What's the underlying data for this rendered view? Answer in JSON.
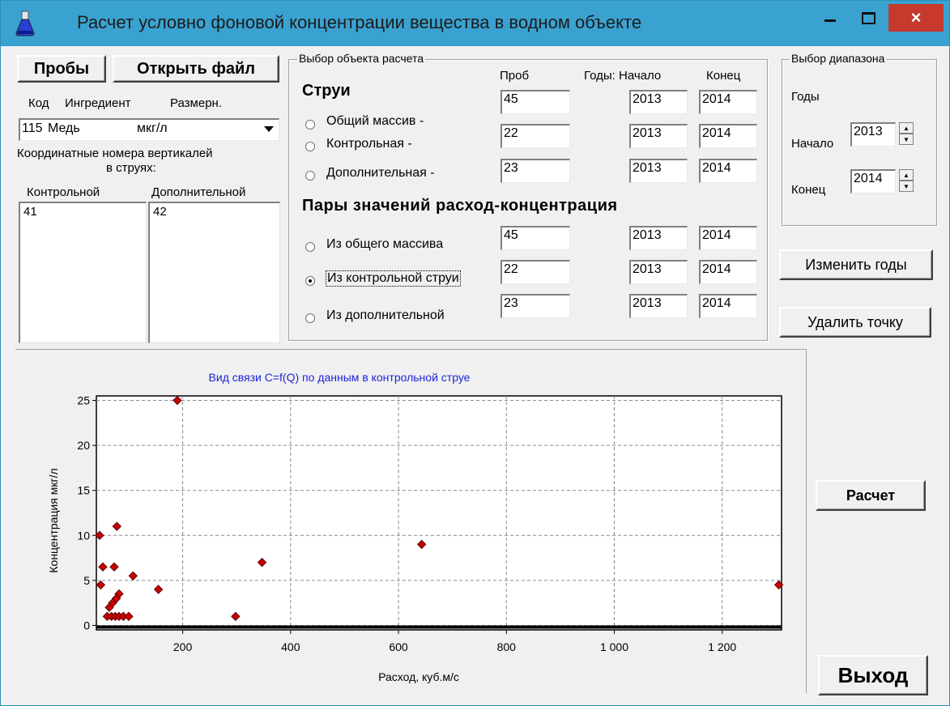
{
  "window": {
    "title": "Расчет условно фоновой концентрации вещества в водном объекте",
    "controls": {
      "minimize": "-",
      "maximize": "□",
      "close": "×"
    }
  },
  "toolbar": {
    "samples_button": "Пробы",
    "open_file_button": "Открыть файл"
  },
  "ingredient": {
    "headers": [
      "Код",
      "Ингредиент",
      "Размерн."
    ],
    "selected": {
      "code": "115",
      "name": "Медь",
      "unit": "мкг/л"
    }
  },
  "verticals": {
    "title_line1": "Координатные номера вертикалей",
    "title_line2": "в струях:",
    "control_header": "Контрольной",
    "additional_header": "Дополнительной",
    "control_items": [
      "41"
    ],
    "additional_items": [
      "42"
    ]
  },
  "object_group": {
    "title": "Выбор объекта расчета",
    "col_samples": "Проб",
    "col_years_start": "Годы: Начало",
    "col_end": "Конец",
    "streams_heading": "Струи",
    "pairs_heading": "Пары значений расход-концентрация",
    "streams": [
      {
        "label": "Общий массив -",
        "samples": "45",
        "start": "2013",
        "end": "2014",
        "selected": false
      },
      {
        "label": "Контрольная -",
        "samples": "22",
        "start": "2013",
        "end": "2014",
        "selected": false
      },
      {
        "label": "Дополнительная -",
        "samples": "23",
        "start": "2013",
        "end": "2014",
        "selected": false
      }
    ],
    "pairs": [
      {
        "label": "Из общего массива",
        "samples": "45",
        "start": "2013",
        "end": "2014",
        "selected": false
      },
      {
        "label": "Из контрольной струи",
        "samples": "22",
        "start": "2013",
        "end": "2014",
        "selected": true
      },
      {
        "label": "Из дополнительной",
        "samples": "23",
        "start": "2013",
        "end": "2014",
        "selected": false
      }
    ]
  },
  "range_group": {
    "title": "Выбор диапазона",
    "years_label": "Годы",
    "start_label": "Начало",
    "start_value": "2013",
    "end_label": "Конец",
    "end_value": "2014"
  },
  "actions": {
    "change_years": "Изменить годы",
    "delete_point": "Удалить точку",
    "calculate": "Расчет",
    "exit": "Выход"
  },
  "colors": {
    "title_bar": "#3aa2d0",
    "close_button": "#c7392d",
    "chart_title": "#1d25d8",
    "point": "#cc0000"
  },
  "chart_data": {
    "type": "scatter",
    "title": "Вид связи C=f(Q) по данным в контрольной струе",
    "xlabel": "Расход, куб.м/с",
    "ylabel": "Концентрация мкг/л",
    "xlim": [
      40,
      1310
    ],
    "ylim": [
      -0.5,
      25.5
    ],
    "xticks": [
      200,
      400,
      600,
      800,
      1000,
      1200
    ],
    "xtick_labels": [
      "200",
      "400",
      "600",
      "800",
      "1 000",
      "1 200"
    ],
    "yticks": [
      0,
      5,
      10,
      15,
      20,
      25
    ],
    "ytick_labels": [
      "0",
      "5",
      "10",
      "15",
      "20",
      "25"
    ],
    "grid": true,
    "points": [
      {
        "x": 190,
        "y": 25
      },
      {
        "x": 46,
        "y": 10
      },
      {
        "x": 78,
        "y": 11
      },
      {
        "x": 52,
        "y": 6.5
      },
      {
        "x": 73,
        "y": 6.5
      },
      {
        "x": 48,
        "y": 4.5
      },
      {
        "x": 108,
        "y": 5.5
      },
      {
        "x": 155,
        "y": 4
      },
      {
        "x": 347,
        "y": 7
      },
      {
        "x": 643,
        "y": 9
      },
      {
        "x": 1305,
        "y": 4.5
      },
      {
        "x": 82,
        "y": 3.5
      },
      {
        "x": 77,
        "y": 3
      },
      {
        "x": 70,
        "y": 2.5
      },
      {
        "x": 64,
        "y": 2
      },
      {
        "x": 60,
        "y": 1
      },
      {
        "x": 68,
        "y": 1
      },
      {
        "x": 75,
        "y": 1
      },
      {
        "x": 82,
        "y": 1
      },
      {
        "x": 90,
        "y": 1
      },
      {
        "x": 100,
        "y": 1
      },
      {
        "x": 298,
        "y": 1
      }
    ]
  }
}
